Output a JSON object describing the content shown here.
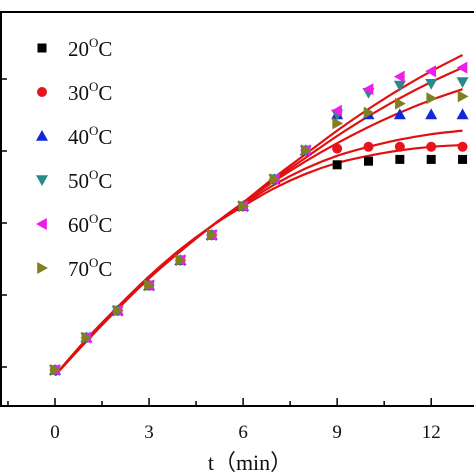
{
  "chart_data": {
    "type": "scatter",
    "xlabel": "t（min）",
    "x_ticks": [
      0,
      3,
      6,
      9,
      12
    ],
    "xlim": [
      -1.5,
      13.3
    ],
    "ylim": [
      0,
      10
    ],
    "grid": false,
    "legend_position": "top-left",
    "common_x": [
      0,
      1,
      2,
      3,
      4,
      5,
      6,
      7,
      8
    ],
    "common_y": [
      0.75,
      1.65,
      2.4,
      3.1,
      3.8,
      4.5,
      5.3,
      6.05,
      6.85
    ],
    "series": [
      {
        "name": "20",
        "unit": "C",
        "marker": "square",
        "color": "#000000",
        "x": [
          9,
          10,
          11,
          12,
          13
        ],
        "y": [
          6.45,
          6.55,
          6.6,
          6.6,
          6.6
        ]
      },
      {
        "name": "30",
        "unit": "C",
        "marker": "circle",
        "color": "#e8141c",
        "x": [
          9,
          10,
          11,
          12,
          13
        ],
        "y": [
          6.9,
          6.95,
          6.95,
          6.95,
          6.95
        ]
      },
      {
        "name": "40",
        "unit": "C",
        "marker": "triangle-up",
        "color": "#1228d8",
        "x": [
          9,
          10,
          11,
          12,
          13
        ],
        "y": [
          7.85,
          7.85,
          7.85,
          7.85,
          7.85
        ]
      },
      {
        "name": "50",
        "unit": "C",
        "marker": "triangle-down",
        "color": "#2a8a8a",
        "x": [
          9,
          10,
          11,
          12,
          13
        ],
        "y": [
          7.85,
          8.45,
          8.65,
          8.7,
          8.75
        ]
      },
      {
        "name": "60",
        "unit": "C",
        "marker": "triangle-left",
        "color": "#ee1ee8",
        "x": [
          9,
          10,
          11,
          12,
          13
        ],
        "y": [
          7.95,
          8.55,
          8.9,
          9.05,
          9.15
        ]
      },
      {
        "name": "70",
        "unit": "C",
        "marker": "triangle-right",
        "color": "#808020",
        "x": [
          9,
          10,
          11,
          12,
          13
        ],
        "y": [
          7.6,
          7.9,
          8.15,
          8.3,
          8.35
        ]
      }
    ],
    "fits": [
      {
        "x": [
          0,
          1,
          2,
          3,
          4,
          5,
          6,
          7,
          8,
          9,
          10,
          11,
          12,
          13
        ],
        "y": [
          0.6,
          1.6,
          2.5,
          3.35,
          4.1,
          4.75,
          5.3,
          5.8,
          6.2,
          6.5,
          6.7,
          6.85,
          6.95,
          7.0
        ]
      },
      {
        "x": [
          0,
          1,
          2,
          3,
          4,
          5,
          6,
          7,
          8,
          9,
          10,
          11,
          12,
          13
        ],
        "y": [
          0.6,
          1.6,
          2.5,
          3.35,
          4.1,
          4.75,
          5.35,
          5.9,
          6.35,
          6.7,
          6.95,
          7.15,
          7.3,
          7.4
        ]
      },
      {
        "x": [
          0,
          1,
          2,
          3,
          4,
          5,
          6,
          7,
          8,
          9,
          10,
          11,
          12,
          13
        ],
        "y": [
          0.6,
          1.55,
          2.45,
          3.3,
          4.05,
          4.75,
          5.4,
          6.0,
          6.55,
          7.05,
          7.5,
          7.9,
          8.25,
          8.55
        ]
      },
      {
        "x": [
          0,
          1,
          2,
          3,
          4,
          5,
          6,
          7,
          8,
          9,
          10,
          11,
          12,
          13
        ],
        "y": [
          0.6,
          1.55,
          2.45,
          3.3,
          4.05,
          4.75,
          5.4,
          6.05,
          6.65,
          7.25,
          7.8,
          8.3,
          8.75,
          9.15
        ]
      },
      {
        "x": [
          0,
          1,
          2,
          3,
          4,
          5,
          6,
          7,
          8,
          9,
          10,
          11,
          12,
          13
        ],
        "y": [
          0.6,
          1.55,
          2.45,
          3.3,
          4.05,
          4.75,
          5.4,
          6.1,
          6.75,
          7.4,
          8.0,
          8.55,
          9.05,
          9.5
        ]
      }
    ],
    "fit_color": "#e01010"
  }
}
